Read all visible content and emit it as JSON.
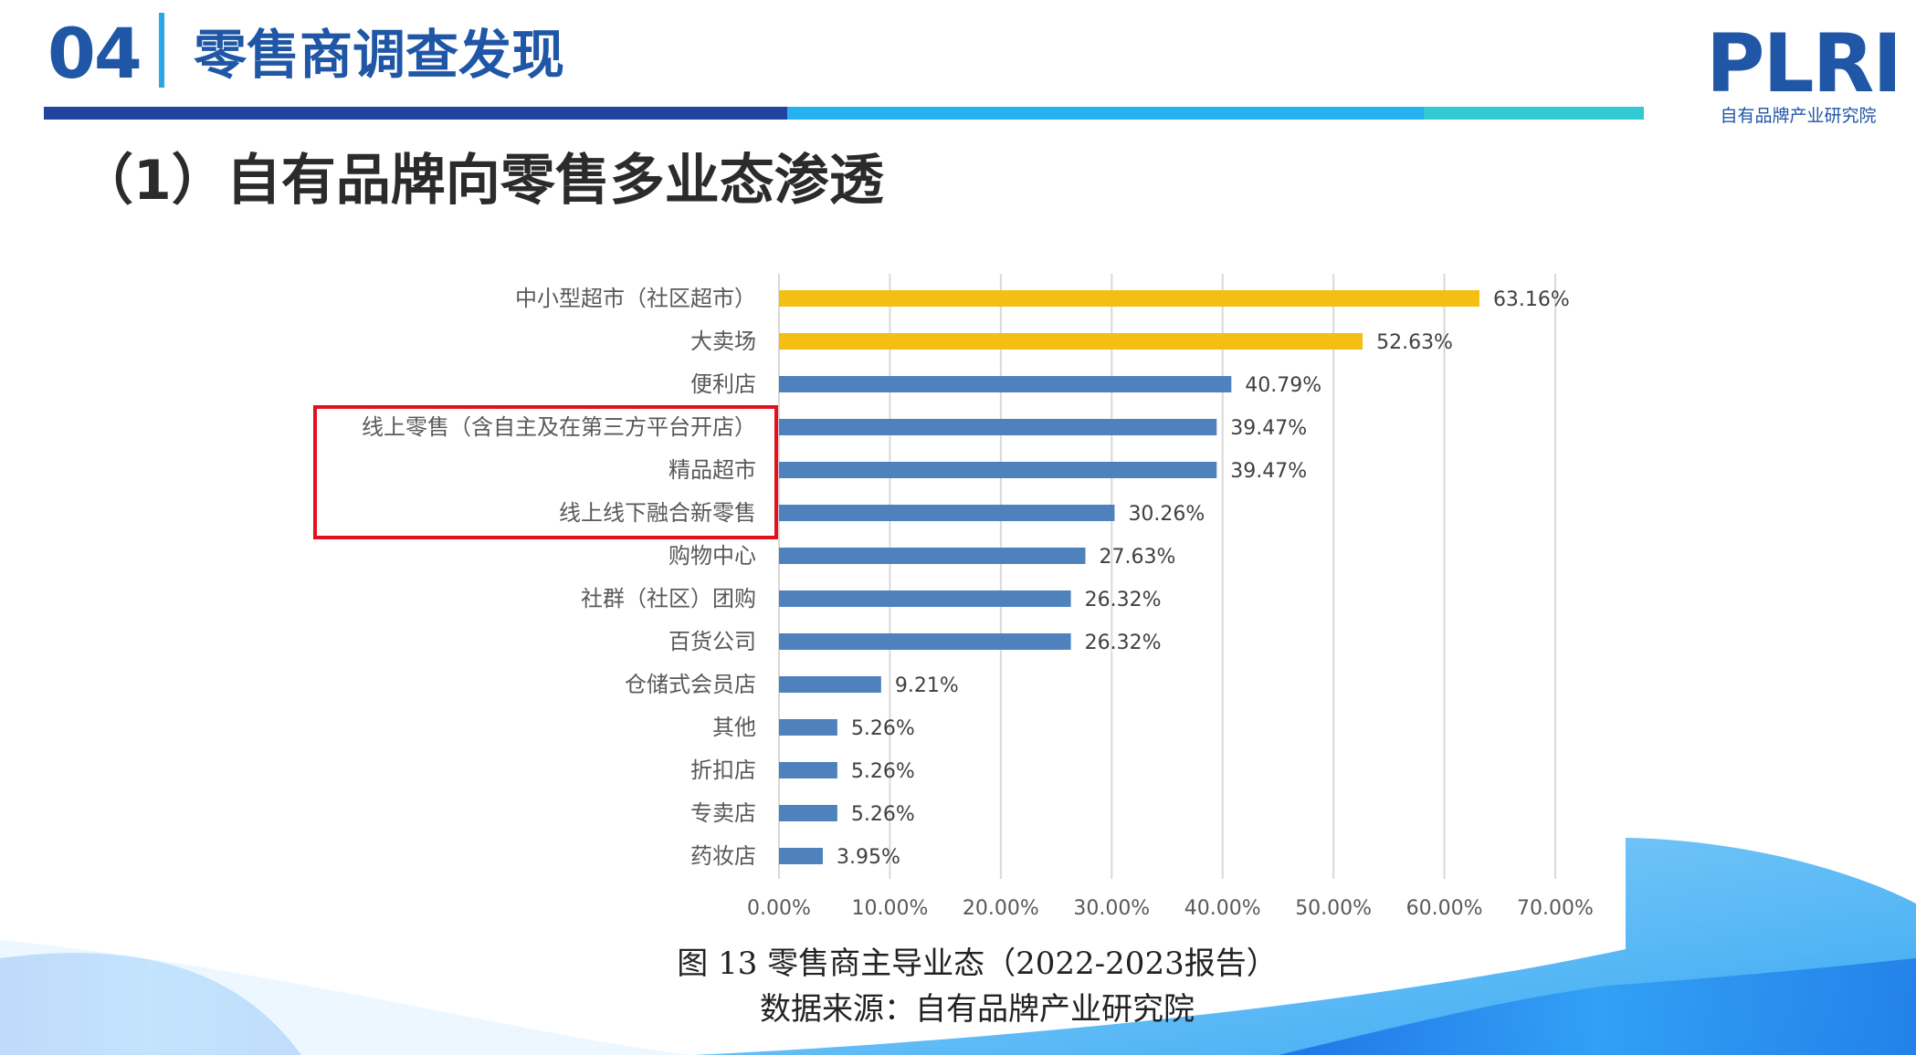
{
  "header": {
    "section_number": "04",
    "section_title": "零售商调查发现",
    "subheading": "（1）自有品牌向零售多业态渗透"
  },
  "logo": {
    "mark": "PLRI",
    "subtitle": "自有品牌产业研究院"
  },
  "colors": {
    "primary_blue": "#1f56a6",
    "bar_blue": "#4f81bd",
    "bar_gold": "#f5be12",
    "highlight_red": "#e3101e"
  },
  "chart_data": {
    "type": "bar",
    "orientation": "horizontal",
    "categories": [
      "中小型超市（社区超市）",
      "大卖场",
      "便利店",
      "线上零售（含自主及在第三方平台开店）",
      "精品超市",
      "线上线下融合新零售",
      "购物中心",
      "社群（社区）团购",
      "百货公司",
      "仓储式会员店",
      "其他",
      "折扣店",
      "专卖店",
      "药妆店"
    ],
    "values": [
      63.16,
      52.63,
      40.79,
      39.47,
      39.47,
      30.26,
      27.63,
      26.32,
      26.32,
      9.21,
      5.26,
      5.26,
      5.26,
      3.95
    ],
    "data_labels": [
      "63.16%",
      "52.63%",
      "40.79%",
      "39.47%",
      "39.47%",
      "30.26%",
      "27.63%",
      "26.32%",
      "26.32%",
      "9.21%",
      "5.26%",
      "5.26%",
      "5.26%",
      "3.95%"
    ],
    "highlight_colors": [
      "gold",
      "gold",
      "blue",
      "blue",
      "blue",
      "blue",
      "blue",
      "blue",
      "blue",
      "blue",
      "blue",
      "blue",
      "blue",
      "blue"
    ],
    "x_ticks": [
      "0.00%",
      "10.00%",
      "20.00%",
      "30.00%",
      "40.00%",
      "50.00%",
      "60.00%",
      "70.00%"
    ],
    "xlim": [
      0,
      70
    ],
    "grid": true,
    "boxed_categories": [
      "线上零售（含自主及在第三方平台开店）",
      "精品超市",
      "线上线下融合新零售"
    ]
  },
  "figure": {
    "caption": "图 13 零售商主导业态（2022-2023报告）",
    "source": "数据来源：自有品牌产业研究院"
  }
}
